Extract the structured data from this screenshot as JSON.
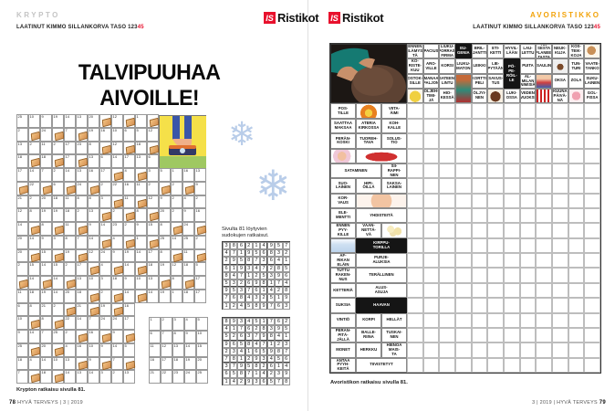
{
  "colors": {
    "brand_red": "#e8112d",
    "accent_orange": "#f2a30a",
    "snowflake_blue": "#b9cde9"
  },
  "left_page": {
    "section_label": "KRYPTO",
    "byline_text": "LAATINUT KIMMO SILLANKORVA TASO",
    "byline_level_black": "123",
    "byline_level_red": "45",
    "logo_is": "IS",
    "logo_name": "Ristikot",
    "title": "TALVIPUUHAA AIVOILLE!",
    "snowflake_glyph": "❄",
    "krypto": {
      "bread_icon": "bread-slice",
      "illustration": "feet-on-scale",
      "rows": [
        [
          "25",
          "10",
          "9",
          "19",
          "14",
          "13",
          "20",
          "B",
          "12",
          "B",
          "1",
          "B"
        ],
        [
          "2",
          "B",
          "24",
          "B",
          "7",
          "B",
          "19",
          "16",
          "10",
          "6",
          "5",
          "12"
        ],
        [
          "13",
          "2",
          "11",
          "2",
          "17",
          "23",
          "8",
          "B",
          "12",
          "B",
          "18",
          "B"
        ],
        [
          "18",
          "B",
          "18",
          "B",
          "17",
          "B",
          "13",
          "6",
          "14",
          "17",
          "13",
          "6"
        ],
        [
          "17",
          "14",
          "7",
          "2",
          "14",
          "13",
          "16",
          "17",
          "B",
          "4",
          "B",
          "3",
          "5",
          "1",
          "16",
          "13"
        ],
        [
          "B",
          "22",
          "B",
          "6",
          "B",
          "24",
          "B",
          "2",
          "22",
          "16",
          "11",
          "2",
          "B",
          "2",
          "B",
          "9"
        ],
        [
          "21",
          "2",
          "20",
          "18",
          "11",
          "8",
          "8",
          "3",
          "B",
          "11",
          "B",
          "12",
          "9",
          "2",
          "4",
          "2"
        ],
        [
          "12",
          "8",
          "19",
          "19",
          "18",
          "2",
          "13",
          "B",
          "2",
          "B",
          "8",
          "B",
          "20",
          "2",
          "9",
          "16"
        ],
        [
          "14",
          "B",
          "8",
          "B",
          "11",
          "B",
          "9",
          "14",
          "23",
          "2",
          "9",
          "15",
          "8",
          "B",
          "24",
          "B"
        ],
        [
          "20",
          "14",
          "9",
          "3",
          "8",
          "7",
          "14",
          "B",
          "4",
          "B",
          "1",
          "B",
          "25",
          "14",
          "25",
          "2"
        ],
        [
          "20",
          "B",
          "15",
          "B",
          "19",
          "B",
          "12",
          "24",
          "9",
          "19",
          "14",
          "17",
          "8",
          "B",
          "11",
          "B"
        ],
        [
          "2",
          "15",
          "14",
          "15",
          "2",
          "17",
          "B",
          "4",
          "B",
          "14",
          "B",
          "18",
          "19",
          "12",
          "18",
          "5"
        ],
        [
          "B",
          "14",
          "B",
          "14",
          "B",
          "13",
          "10",
          "3",
          "18",
          "9",
          "10",
          "13",
          "B",
          "8",
          "B",
          "17"
        ],
        [
          "11",
          "18",
          "19",
          "14",
          "20",
          "18",
          "B",
          "2",
          "B",
          "14",
          "B",
          "14",
          "19",
          "1",
          "18",
          "17"
        ],
        [
          "6",
          "8",
          "21",
          "2",
          "B",
          "21",
          "B",
          "19",
          "B",
          "16"
        ],
        [
          "10",
          "B",
          "8",
          "B",
          "22",
          "14",
          "7",
          "24",
          "24",
          "17"
        ],
        [
          "9",
          "14",
          "7",
          "25",
          "2",
          "B",
          "16",
          "B",
          "9",
          "B"
        ],
        [
          "25",
          "B",
          "20",
          "B",
          "4",
          "16",
          "10",
          "9",
          "14",
          "5"
        ],
        [
          "18",
          "4",
          "14",
          "10",
          "13",
          "B",
          "9",
          "B",
          "7",
          "B"
        ],
        [
          "7",
          "B",
          "18",
          "B",
          "14",
          "13",
          "14",
          "3",
          "2",
          "13"
        ]
      ],
      "key_table": [
        [
          "1",
          "2",
          "3",
          "4",
          "5"
        ],
        [
          "6",
          "7",
          "8",
          "9",
          "10"
        ],
        [
          "11",
          "12",
          "13",
          "14",
          "15"
        ],
        [
          "16",
          "17",
          "18",
          "19",
          "20"
        ],
        [
          "21",
          "22",
          "23",
          "24",
          "25"
        ]
      ]
    },
    "sudoku_caption": "Sivulta 81 löytyvien\nsudokujen ratkaisut.",
    "sudoku_solutions": [
      [
        "386214957",
        "471956832",
        "295873641",
        "619347285",
        "847125396",
        "532698174",
        "953761428",
        "768432519",
        "124589763"
      ],
      [
        "893451762",
        "417628395",
        "526379841",
        "965847123",
        "234165987",
        "781293456",
        "379582614",
        "658714239",
        "142936578"
      ]
    ],
    "solution_note": "Krypton ratkaisu sivulla 81.",
    "page_number": "78",
    "footer_text": "HYVÄ TERVEYS | 3 | 2019"
  },
  "right_page": {
    "logo_is": "IS",
    "logo_name": "Ristikot",
    "section_label": "AVORISTIKKO",
    "byline_text": "LAATINUT KIMMO SILLANKORVA TASO",
    "byline_level_black": "123",
    "byline_level_red": "45",
    "crossword": {
      "cols": 15,
      "rows": 22,
      "photo": {
        "r": 1,
        "c": 1,
        "rs": 4,
        "cs": 3,
        "label": "scalp-massage-photo"
      },
      "cells": [
        {
          "r": 1,
          "c": 4,
          "t": "ENNEN\nELÄMYS-\nTÄ"
        },
        {
          "r": 1,
          "c": 5,
          "t": "PACIUS"
        },
        {
          "r": 1,
          "c": 6,
          "t": "LIUKU-\nPORRAS-\nFIRMA"
        },
        {
          "r": 1,
          "c": 7,
          "t": "EU-\nGENIA",
          "k": "black"
        },
        {
          "r": 1,
          "c": 8,
          "t": "BRIL-\nJANTTI"
        },
        {
          "r": 1,
          "c": 9,
          "t": "ETI-\nKETTI"
        },
        {
          "r": 1,
          "c": 10,
          "t": "HYVIL-\nLÄÄN"
        },
        {
          "r": 1,
          "c": 11,
          "t": "LAU-\nLETTU"
        },
        {
          "r": 1,
          "c": 12,
          "t": "TOI-\nSESTA\nPLANEE-\nTASTA"
        },
        {
          "r": 1,
          "c": 13,
          "t": "NEUK-\nKUJA"
        },
        {
          "r": 1,
          "c": 14,
          "t": "KOS-\nTEIK-\nKOJA"
        },
        {
          "r": 1,
          "c": 15,
          "k": "img",
          "img": "dog"
        },
        {
          "r": 2,
          "c": 4,
          "t": "KO-\nRISTE-\nKUU"
        },
        {
          "r": 2,
          "c": 5,
          "t": "ARO-\nVILLE"
        },
        {
          "r": 2,
          "c": 6,
          "t": "KORSI"
        },
        {
          "r": 2,
          "c": 7,
          "t": "LIUKU-\nMATON"
        },
        {
          "r": 2,
          "c": 8,
          "t": "LEIKKI"
        },
        {
          "r": 2,
          "c": 9,
          "t": "LIE-\nPYTÄÄN"
        },
        {
          "r": 2,
          "c": 10,
          "rs": 2,
          "t": "PÖ-\nPE-\nRÖIL-\nLE",
          "k": "black"
        },
        {
          "r": 2,
          "c": 11,
          "t": "PUITA"
        },
        {
          "r": 2,
          "c": 12,
          "t": "SAULIN"
        },
        {
          "r": 2,
          "c": 13,
          "k": "img",
          "img": "cup"
        },
        {
          "r": 2,
          "c": 14,
          "t": "TUN-\nTURI"
        },
        {
          "r": 2,
          "c": 15,
          "t": "VAATE-\nTANKO"
        },
        {
          "r": 3,
          "c": 4,
          "t": "OSTOK-\nSILLE"
        },
        {
          "r": 3,
          "c": 5,
          "t": "MANAA\nPALJON"
        },
        {
          "r": 3,
          "c": 6,
          "t": "SATEEN-\nLINTU"
        },
        {
          "r": 3,
          "c": 7,
          "rs": 2,
          "k": "img",
          "img": "woman"
        },
        {
          "r": 3,
          "c": 8,
          "t": "KORTTI-\nPELI"
        },
        {
          "r": 3,
          "c": 9,
          "t": "SAVUS-\nTUS"
        },
        {
          "r": 3,
          "c": 11,
          "t": "AL-\nMILAN\nNIMISIÄ"
        },
        {
          "r": 3,
          "c": 12,
          "k": "img",
          "img": "girl"
        },
        {
          "r": 3,
          "c": 13,
          "t": "OKSA"
        },
        {
          "r": 3,
          "c": 14,
          "t": "ZOLA"
        },
        {
          "r": 3,
          "c": 15,
          "t": "SUKU-\nLAINEN"
        },
        {
          "r": 4,
          "c": 4,
          "k": "img",
          "img": "cheese"
        },
        {
          "r": 4,
          "c": 5,
          "t": "ÖLJEH-\nTIMI-\nJÄ"
        },
        {
          "r": 4,
          "c": 6,
          "t": "HIO-\nKESSÄ"
        },
        {
          "r": 4,
          "c": 8,
          "t": "ÖLJYI-\nNEN"
        },
        {
          "r": 4,
          "c": 9,
          "k": "img",
          "img": "chocolate"
        },
        {
          "r": 4,
          "c": 10,
          "t": "LUKI-\nOSSA"
        },
        {
          "r": 4,
          "c": 11,
          "t": "VEDEN\nVUOKSI"
        },
        {
          "r": 4,
          "c": 12,
          "k": "img",
          "img": "radiator"
        },
        {
          "r": 4,
          "c": 13,
          "t": "KUUNA\nPÄIVÄ-\nNÄ"
        },
        {
          "r": 4,
          "c": 14,
          "k": "img",
          "img": "pig"
        },
        {
          "r": 4,
          "c": 15,
          "t": "GOL-\nFISSA"
        },
        {
          "r": 5,
          "c": 1,
          "t": "POS-\nTILLE"
        },
        {
          "r": 5,
          "c": 2,
          "k": "img",
          "img": "campfire"
        },
        {
          "r": 5,
          "c": 3,
          "t": "VIITA-\nÄIMI"
        },
        {
          "r": 6,
          "c": 1,
          "t": "SAATTAA\nMAKSAA"
        },
        {
          "r": 6,
          "c": 2,
          "t": "ATERIA\nKIRKOSSA"
        },
        {
          "r": 6,
          "c": 3,
          "t": "KOH-\nKALLE"
        },
        {
          "r": 7,
          "c": 1,
          "t": "PERÄN-\nKOSKI"
        },
        {
          "r": 7,
          "c": 2,
          "t": "TUOREH-\nTAVA"
        },
        {
          "r": 7,
          "c": 3,
          "t": "SOLUS-\nTIO"
        },
        {
          "r": 8,
          "c": 1,
          "k": "img",
          "img": "doll"
        },
        {
          "r": 8,
          "c": 2,
          "cs": 2,
          "k": "img",
          "img": "airplane"
        },
        {
          "r": 9,
          "c": 1,
          "cs": 2,
          "t": "SATAMINEN"
        },
        {
          "r": 9,
          "c": 3,
          "t": "SII-\nRAPPI-\nNEN"
        },
        {
          "r": 10,
          "c": 1,
          "t": "SUO-\nLAINEN"
        },
        {
          "r": 10,
          "c": 2,
          "t": "HIPI-\nÖILLÄ"
        },
        {
          "r": 10,
          "c": 3,
          "t": "SAKSA-\nLAINEN"
        },
        {
          "r": 11,
          "c": 1,
          "t": "KOR-\nVAUS"
        },
        {
          "r": 11,
          "c": 2,
          "cs": 2,
          "k": "img",
          "img": "baby"
        },
        {
          "r": 12,
          "c": 1,
          "t": "ELE-\nMENTTI"
        },
        {
          "r": 12,
          "c": 2,
          "cs": 2,
          "t": "YHDISTEITÄ"
        },
        {
          "r": 13,
          "c": 1,
          "t": "ENNEN\nPYY-\nKILLE"
        },
        {
          "r": 13,
          "c": 2,
          "t": "VÄÄN-\nNETTÄ-\nVÄ"
        },
        {
          "r": 13,
          "c": 3,
          "k": "img",
          "img": "popcorn"
        },
        {
          "r": 14,
          "c": 1,
          "k": "img",
          "img": "glass"
        },
        {
          "r": 14,
          "c": 2,
          "cs": 2,
          "t": "KIRPPU-\nTORILLA",
          "k": "black"
        },
        {
          "r": 15,
          "c": 1,
          "t": "AF-\nRIKAN\nELÄIN"
        },
        {
          "r": 15,
          "c": 2,
          "cs": 2,
          "t": "PURJE-\nALUKSIA"
        },
        {
          "r": 16,
          "c": 1,
          "t": "TUTTU\nRAKEN-\nNUS"
        },
        {
          "r": 16,
          "c": 2,
          "cs": 2,
          "t": "TERÄLLINEN"
        },
        {
          "r": 17,
          "c": 1,
          "t": "KETTERIÄ"
        },
        {
          "r": 17,
          "c": 2,
          "cs": 2,
          "t": "ALUS-\nASUJA"
        },
        {
          "r": 18,
          "c": 1,
          "t": "SUKSIA"
        },
        {
          "r": 18,
          "c": 2,
          "cs": 2,
          "t": "HAAVAN",
          "k": "black"
        },
        {
          "r": 19,
          "c": 1,
          "t": "VINTIÖ"
        },
        {
          "r": 19,
          "c": 2,
          "t": "KORPI"
        },
        {
          "r": 19,
          "c": 3,
          "t": "HELLÄT"
        },
        {
          "r": 20,
          "c": 1,
          "t": "PERÄN-\nPITÄ-\nJÄLLÄ"
        },
        {
          "r": 20,
          "c": 2,
          "t": "BALLE-\nRIINA"
        },
        {
          "r": 20,
          "c": 3,
          "t": "TUSKAI-\nNEN"
        },
        {
          "r": 21,
          "c": 1,
          "t": "MONET"
        },
        {
          "r": 21,
          "c": 2,
          "t": "HERKKU"
        },
        {
          "r": 21,
          "c": 3,
          "t": "HIENOA\nMAIS-\nTA"
        },
        {
          "r": 22,
          "c": 1,
          "t": "ANTAA\nPYYH-\nKEITÄ"
        },
        {
          "r": 22,
          "c": 2,
          "cs": 2,
          "t": "TIIVISTETYT"
        }
      ]
    },
    "solution_note": "Avoristikon ratkaisu sivulla 81.",
    "footer_text": "3 | 2019 | HYVÄ TERVEYS",
    "page_number": "79"
  }
}
